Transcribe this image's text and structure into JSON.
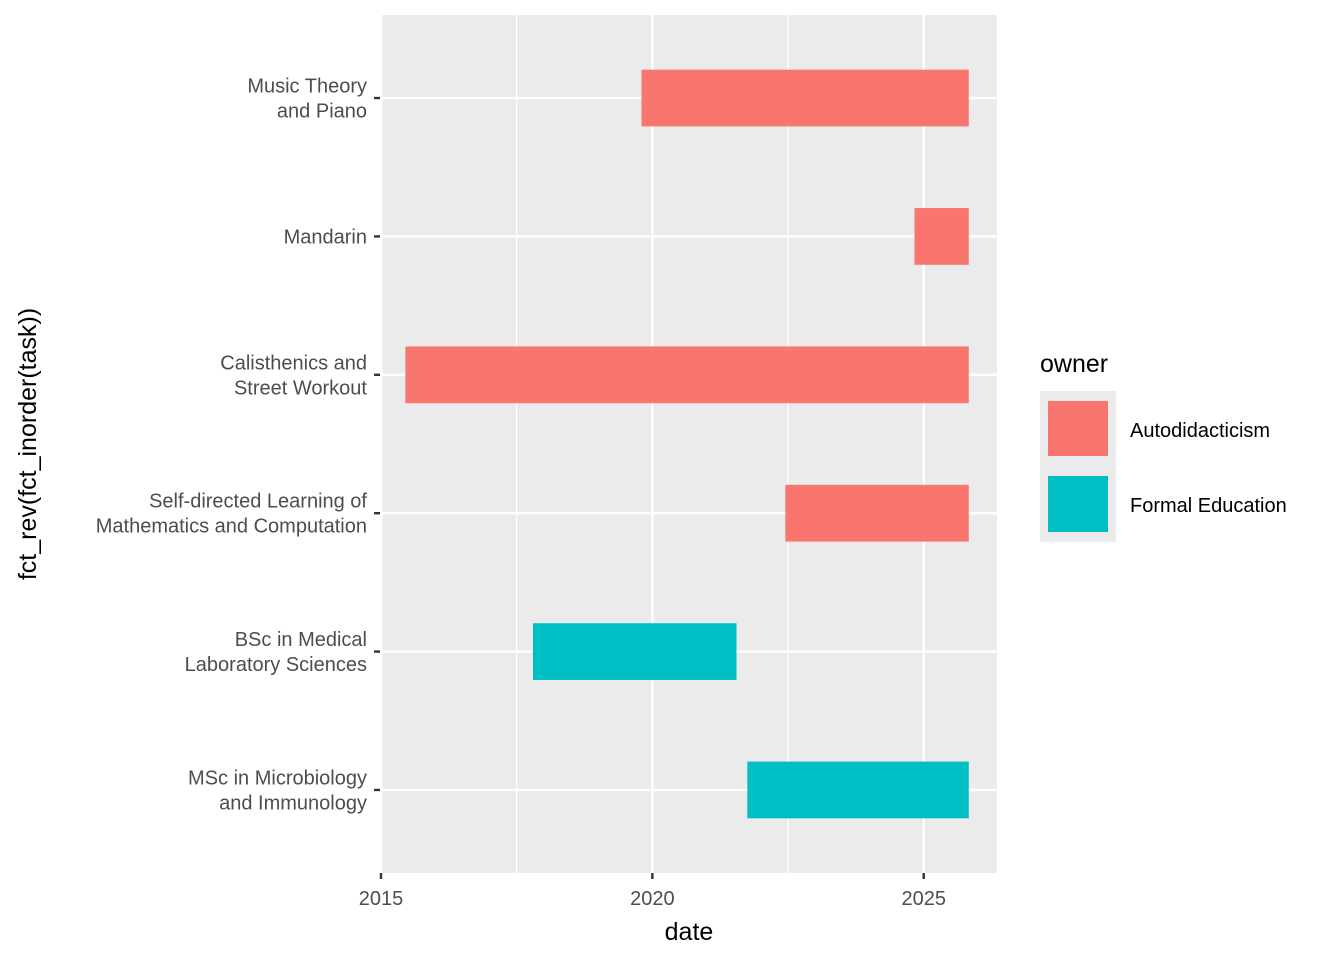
{
  "chart_data": {
    "type": "bar",
    "orientation": "horizontal",
    "xlabel": "date",
    "ylabel": "fct_rev(fct_inorder(task))",
    "xlim": [
      2015.0,
      2026.35
    ],
    "x_ticks": [
      2015,
      2020,
      2025
    ],
    "x_tick_labels": [
      "2015",
      "2020",
      "2025"
    ],
    "x_minor_ticks": [
      2017.5,
      2022.5
    ],
    "grid": true,
    "colors": {
      "Autodidacticism": "#F8766D",
      "Formal Education": "#00BFC4",
      "panel": "#EBEBEB",
      "gridline": "#FFFFFF"
    },
    "legend": {
      "title": "owner",
      "position": "right",
      "items": [
        "Autodidacticism",
        "Formal Education"
      ]
    },
    "tasks": [
      {
        "label": [
          "Music Theory",
          "and Piano"
        ],
        "owner": "Autodidacticism",
        "start": 2019.8,
        "end": 2025.83
      },
      {
        "label": [
          "Mandarin"
        ],
        "owner": "Autodidacticism",
        "start": 2024.83,
        "end": 2025.83
      },
      {
        "label": [
          "Calisthenics and",
          "Street Workout"
        ],
        "owner": "Autodidacticism",
        "start": 2015.45,
        "end": 2025.83
      },
      {
        "label": [
          "Self-directed Learning of",
          "Mathematics and Computation"
        ],
        "owner": "Autodidacticism",
        "start": 2022.45,
        "end": 2025.83
      },
      {
        "label": [
          "BSc in Medical",
          "Laboratory Sciences"
        ],
        "owner": "Formal Education",
        "start": 2017.8,
        "end": 2021.55
      },
      {
        "label": [
          "MSc in Microbiology",
          "and Immunology"
        ],
        "owner": "Formal Education",
        "start": 2021.75,
        "end": 2025.83
      }
    ]
  }
}
